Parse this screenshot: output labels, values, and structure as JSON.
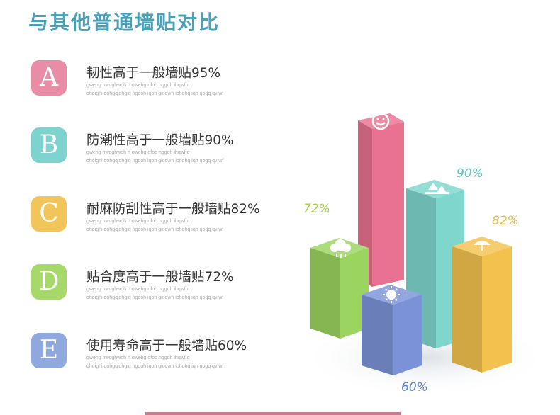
{
  "title": "与其他普通墙贴对比",
  "items": [
    {
      "letter": "A",
      "text": "韧性高于一般墙贴95%",
      "color": "#e98da6",
      "sub1": "gwehg hwoghwoh h owehg ofoq hggqh ihqwf q",
      "sub2": "qhoighi qohgqiohgiq hgqoh iqoh gioqwh iohohq iqh qogq qv  wf"
    },
    {
      "letter": "B",
      "text": "防潮性高于一般墙贴90%",
      "color": "#7fd3cf",
      "sub1": "gwehg hwoghwoh h owehg ofoq hggqh ihqwf q",
      "sub2": "qhoighi qohgqiohgiq hgqoh iqoh gioqwh iohohq iqh qogq qv  wf"
    },
    {
      "letter": "C",
      "text": "耐麻防刮性高于一般墙贴82%",
      "color": "#f2c55a",
      "sub1": "gwehg hwoghwoh h owehg ofoq hggqh ihqwf q",
      "sub2": "qhoighi qohgqiohgiq hgqoh iqoh gioqwh iohohq iqh qogq qv  wf"
    },
    {
      "letter": "D",
      "text": "贴合度高于一般墙贴72%",
      "color": "#a6d96a",
      "sub1": "gwehg hwoghwoh h owehg ofoq hggqh ihqwf q",
      "sub2": "qhoighi qohgqiohgiq hgqoh iqoh gioqwh iohohq iqh qogq qv  wf"
    },
    {
      "letter": "E",
      "text": "使用寿命高于一般墙贴60%",
      "color": "#8fa9de",
      "sub1": "gwehg hwoghwoh h owehg ofoq hggqh ihqwf q",
      "sub2": "qhoighi qohgqiohgiq hgqoh iqoh gioqwh iohohq iqh qogq qv  wf"
    }
  ],
  "chart": {
    "labels": {
      "green": "72%",
      "teal": "90%",
      "yellow": "82%",
      "blue": "60%"
    },
    "colors": {
      "pink": "#e8728f",
      "teal": "#7fd6cd",
      "green": "#9bd45f",
      "blue": "#7b92d8",
      "yellow": "#f3c24e",
      "label_green": "#a5cf4a",
      "label_teal": "#5fc4c0",
      "label_yellow": "#e8b84a",
      "label_blue": "#5b7fc8"
    },
    "icons": [
      "smiley-icon",
      "arrows-up-icon",
      "cloud-rain-icon",
      "umbrella-icon",
      "sun-icon"
    ]
  }
}
